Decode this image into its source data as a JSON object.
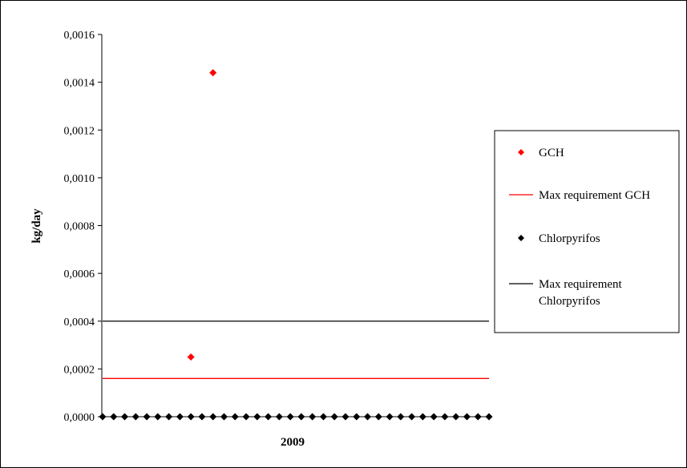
{
  "chart_data": {
    "type": "scatter",
    "title": "",
    "xlabel": "2009",
    "ylabel": "kg/day",
    "ylim": [
      0,
      0.0016
    ],
    "yticks": [
      "0,0000",
      "0,0002",
      "0,0004",
      "0,0006",
      "0,0008",
      "0,0010",
      "0,0012",
      "0,0014",
      "0,0016"
    ],
    "grid": false,
    "legend_position": "right",
    "x_positions": [
      1,
      2,
      3,
      4,
      5,
      6,
      7,
      8,
      9,
      10,
      11,
      12,
      13,
      14,
      15,
      16,
      17,
      18,
      19,
      20,
      21,
      22,
      23,
      24,
      25,
      26,
      27,
      28,
      29,
      30,
      31,
      32,
      33,
      34,
      35,
      36
    ],
    "series": [
      {
        "name": "GCH",
        "kind": "points",
        "marker": "diamond",
        "color": "#ff0000",
        "points": [
          [
            9,
            0.00025
          ],
          [
            11,
            0.00144
          ]
        ]
      },
      {
        "name": "Max requirement GCH",
        "kind": "line",
        "color": "#ff0000",
        "value": 0.00016
      },
      {
        "name": "Chlorpyrifos",
        "kind": "points",
        "marker": "diamond",
        "color": "#000000",
        "y_all": 0.0
      },
      {
        "name": "Max requirement Chlorpyrifos",
        "kind": "line",
        "color": "#000000",
        "value": 0.0004
      }
    ]
  },
  "legend": {
    "items": [
      {
        "label": "GCH",
        "kind": "marker",
        "color": "#ff0000"
      },
      {
        "label": "Max requirement GCH",
        "kind": "line",
        "color": "#ff0000"
      },
      {
        "label": "Chlorpyrifos",
        "kind": "marker",
        "color": "#000000"
      },
      {
        "label": "Max requirement Chlorpyrifos",
        "kind": "line",
        "color": "#000000"
      }
    ]
  }
}
